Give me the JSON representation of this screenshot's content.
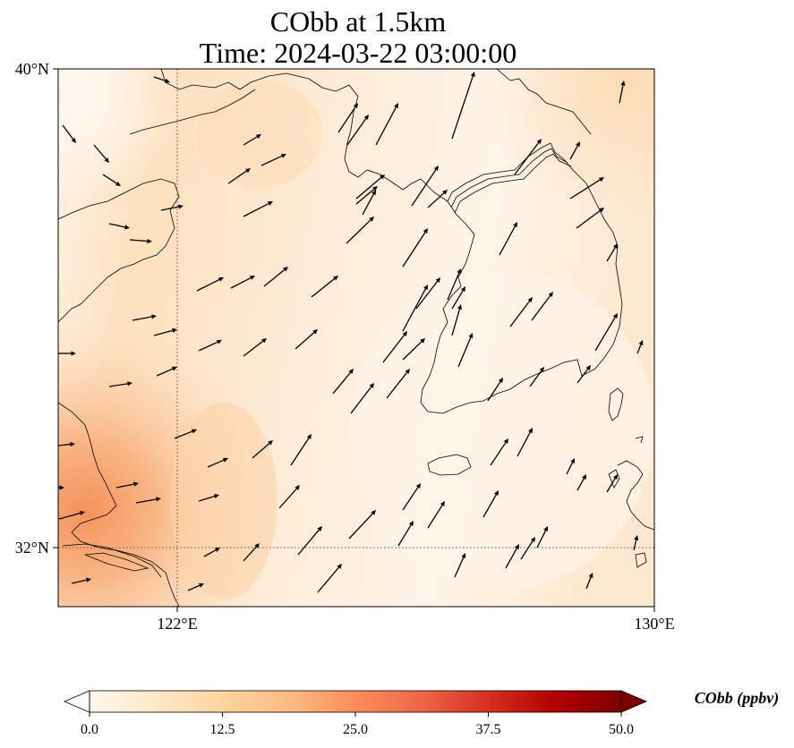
{
  "title": {
    "line1": "CObb at 1.5km",
    "line2": "Time: 2024-03-22 03:00:00"
  },
  "map": {
    "lon_range": [
      119,
      130
    ],
    "lat_range": [
      30.9,
      40
    ],
    "lat_ticks": [
      {
        "value": 32,
        "label": "32°N"
      },
      {
        "value": 40,
        "label": "40°N"
      }
    ],
    "lon_ticks": [
      {
        "value": 122,
        "label": "122°E"
      },
      {
        "value": 130,
        "label": "130°E"
      }
    ],
    "gridlines": "dotted",
    "field_colors": {
      "low": "#fff5eb",
      "mid": "#fdd9b3",
      "high": "#f5925a"
    }
  },
  "colorbar": {
    "label": "CObb (ppbv)",
    "min": 0.0,
    "max": 50.0,
    "extend": "both",
    "tick_labels": [
      "0.0",
      "12.5",
      "25.0",
      "37.5",
      "50.0"
    ],
    "colormap": "OrRd",
    "colors": [
      "#fff7ec",
      "#fee8c8",
      "#fdd49e",
      "#fdbb84",
      "#fc8d59",
      "#ef6548",
      "#d7301f",
      "#b30000",
      "#7f0000"
    ]
  }
}
